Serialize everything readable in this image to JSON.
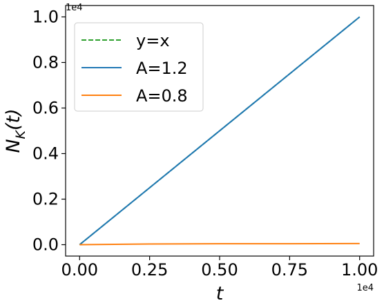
{
  "chart_data": {
    "type": "line",
    "xlabel": "t",
    "ylabel": "N_K(t)",
    "xlim": [
      -0.05,
      1.05
    ],
    "ylim": [
      -0.05,
      1.05
    ],
    "x_offset_text": "1e4",
    "y_offset_text": "1e4",
    "x_ticks": [
      0.0,
      0.25,
      0.5,
      0.75,
      1.0
    ],
    "x_tick_labels": [
      "0.00",
      "0.25",
      "0.50",
      "0.75",
      "1.00"
    ],
    "y_ticks": [
      0.0,
      0.2,
      0.4,
      0.6,
      0.8,
      1.0
    ],
    "y_tick_labels": [
      "0.0",
      "0.2",
      "0.4",
      "0.6",
      "0.8",
      "1.0"
    ],
    "grid": false,
    "legend_position": "upper-left",
    "series": [
      {
        "name": "y=x",
        "color": "#2ca02c",
        "dash": "dashed",
        "x": [
          0.0,
          1.0
        ],
        "y": [
          0.0,
          1.0
        ]
      },
      {
        "name": "A=1.2",
        "color": "#1f77b4",
        "dash": "solid",
        "x": [
          0.0,
          1.0
        ],
        "y": [
          0.0,
          1.0
        ]
      },
      {
        "name": "A=0.8",
        "color": "#ff7f0e",
        "dash": "solid",
        "x": [
          0.0,
          0.25,
          0.5,
          0.75,
          1.0
        ],
        "y": [
          0.0,
          0.003,
          0.004,
          0.004,
          0.005
        ]
      }
    ]
  }
}
